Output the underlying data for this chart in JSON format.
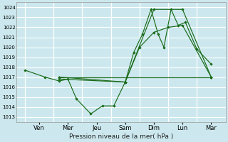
{
  "xlabel": "Pression niveau de la mer( hPa )",
  "bg_color": "#cce8ee",
  "grid_color": "#ffffff",
  "line_color": "#1a6b1a",
  "yticks": [
    1013,
    1014,
    1015,
    1016,
    1017,
    1018,
    1019,
    1020,
    1021,
    1022,
    1023,
    1024
  ],
  "ylim": [
    1012.5,
    1024.5
  ],
  "xlim": [
    -0.3,
    7.0
  ],
  "day_labels": [
    "Ven",
    "Mer",
    "Jeu",
    "Sam",
    "Dim",
    "Lun",
    "Mar"
  ],
  "day_positions": [
    0.5,
    1.5,
    2.5,
    3.5,
    4.5,
    5.5,
    6.5
  ],
  "vline_positions": [
    0,
    1,
    2,
    3,
    4,
    5,
    6,
    7
  ],
  "line1": {
    "x": [
      0.0,
      0.7,
      1.2,
      1.5,
      1.8,
      2.3,
      2.7,
      3.1,
      3.5,
      3.8,
      4.1,
      4.4,
      4.65,
      4.85,
      5.1,
      5.35,
      5.6,
      6.0,
      6.5
    ],
    "y": [
      1017.7,
      1017.0,
      1016.6,
      1016.8,
      1014.8,
      1013.3,
      1014.1,
      1014.1,
      1016.5,
      1019.5,
      1021.3,
      1023.8,
      1021.3,
      1020.0,
      1023.8,
      1022.2,
      1022.5,
      1019.8,
      1018.3
    ]
  },
  "line2": {
    "x": [
      1.2,
      3.5,
      4.0,
      4.5,
      5.0,
      5.5,
      6.5
    ],
    "y": [
      1016.8,
      1016.5,
      1020.0,
      1021.5,
      1022.0,
      1022.2,
      1017.0
    ]
  },
  "line3": {
    "x": [
      1.2,
      6.5
    ],
    "y": [
      1017.0,
      1017.0
    ]
  },
  "line4": {
    "x": [
      1.2,
      3.5,
      4.5,
      5.5,
      6.5
    ],
    "y": [
      1017.0,
      1016.5,
      1023.8,
      1023.8,
      1017.0
    ]
  }
}
